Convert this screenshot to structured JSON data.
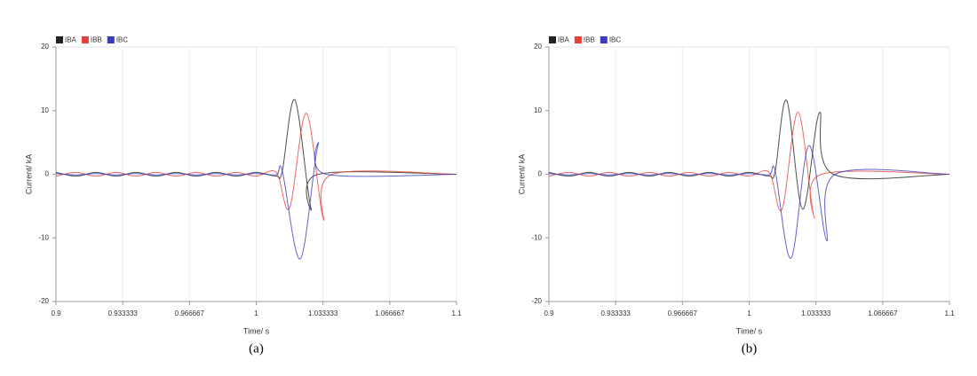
{
  "chart_data": [
    {
      "type": "line",
      "caption": "(a)",
      "xlabel": "Time/ s",
      "ylabel": "Current/ kA",
      "xlim": [
        0.9,
        1.1
      ],
      "ylim": [
        -20,
        20
      ],
      "xticks": [
        0.9,
        0.933333,
        0.966667,
        1,
        1.033333,
        1.066667,
        1.1
      ],
      "yticks": [
        -20,
        -10,
        0,
        10,
        20
      ],
      "grid": "x",
      "legend": "top-left",
      "series": [
        {
          "name": "IBA",
          "color": "#222222",
          "x": [
            0.9,
            0.91,
            0.92,
            0.93,
            0.94,
            0.95,
            0.96,
            0.97,
            0.98,
            0.99,
            1,
            1.01,
            1.013,
            1.0193,
            1.0273,
            1.031,
            1.1
          ],
          "values": [
            0.3,
            -0.3,
            0.3,
            -0.3,
            0.3,
            -0.3,
            0.3,
            -0.3,
            0.3,
            -0.3,
            0.3,
            -0.3,
            0.5,
            11.7,
            -5.3,
            0,
            0
          ]
        },
        {
          "name": "IBB",
          "color": "#e8413c",
          "x": [
            0.9,
            0.91,
            0.92,
            0.93,
            0.94,
            0.95,
            0.96,
            0.97,
            0.98,
            0.99,
            1,
            1.01,
            1.0166,
            1.025,
            1.0335,
            1.038,
            1.1
          ],
          "values": [
            -0.3,
            0.3,
            -0.3,
            0.3,
            -0.3,
            0.3,
            -0.3,
            0.3,
            -0.3,
            0.3,
            -0.3,
            0.3,
            -5.3,
            9.6,
            -7,
            0,
            0
          ]
        },
        {
          "name": "IBC",
          "color": "#3b3bbf",
          "x": [
            0.9,
            0.91,
            0.92,
            0.93,
            0.94,
            0.95,
            0.96,
            0.97,
            0.98,
            0.99,
            1,
            1.01,
            1.013,
            1.022,
            1.0308,
            1.035,
            1.1
          ],
          "values": [
            0.1,
            -0.1,
            0.1,
            -0.1,
            0.1,
            -0.1,
            0.1,
            -0.1,
            0.1,
            -0.1,
            0.1,
            -0.1,
            0.5,
            -13.3,
            4.5,
            0,
            0
          ]
        }
      ]
    },
    {
      "type": "line",
      "caption": "(b)",
      "xlabel": "Time/ s",
      "ylabel": "Current/ kA",
      "xlim": [
        0.9,
        1.1
      ],
      "ylim": [
        -20,
        20
      ],
      "xticks": [
        0.9,
        0.933333,
        0.966667,
        1,
        1.033333,
        1.066667,
        1.1
      ],
      "yticks": [
        -20,
        -10,
        0,
        10,
        20
      ],
      "grid": "x",
      "legend": "top-left",
      "series": [
        {
          "name": "IBA",
          "color": "#222222",
          "x": [
            0.9,
            0.91,
            0.92,
            0.93,
            0.94,
            0.95,
            0.96,
            0.97,
            0.98,
            0.99,
            1,
            1.01,
            1.013,
            1.0187,
            1.0267,
            1.0351,
            1.042,
            1.1
          ],
          "values": [
            0.3,
            -0.3,
            0.3,
            -0.3,
            0.3,
            -0.3,
            0.3,
            -0.3,
            0.3,
            -0.3,
            0.3,
            -0.3,
            0.5,
            11.6,
            -5.5,
            9.7,
            0,
            0
          ]
        },
        {
          "name": "IBB",
          "color": "#e8413c",
          "x": [
            0.9,
            0.91,
            0.92,
            0.93,
            0.94,
            0.95,
            0.96,
            0.97,
            0.98,
            0.99,
            1,
            1.01,
            1.0164,
            1.0244,
            1.0324,
            1.036,
            1.1
          ],
          "values": [
            -0.3,
            0.3,
            -0.3,
            0.3,
            -0.3,
            0.3,
            -0.3,
            0.3,
            -0.3,
            0.3,
            -0.3,
            0.3,
            -5.5,
            9.8,
            -6.7,
            0,
            0
          ]
        },
        {
          "name": "IBC",
          "color": "#3b3bbf",
          "x": [
            0.9,
            0.91,
            0.92,
            0.93,
            0.94,
            0.95,
            0.96,
            0.97,
            0.98,
            0.99,
            1,
            1.01,
            1.013,
            1.0209,
            1.0298,
            1.0387,
            1.043,
            1.1
          ],
          "values": [
            0.1,
            -0.1,
            0.1,
            -0.1,
            0.1,
            -0.1,
            0.1,
            -0.1,
            0.1,
            -0.1,
            0.1,
            -0.1,
            0.5,
            -13.2,
            4.5,
            -10.4,
            0,
            0
          ]
        }
      ]
    }
  ]
}
